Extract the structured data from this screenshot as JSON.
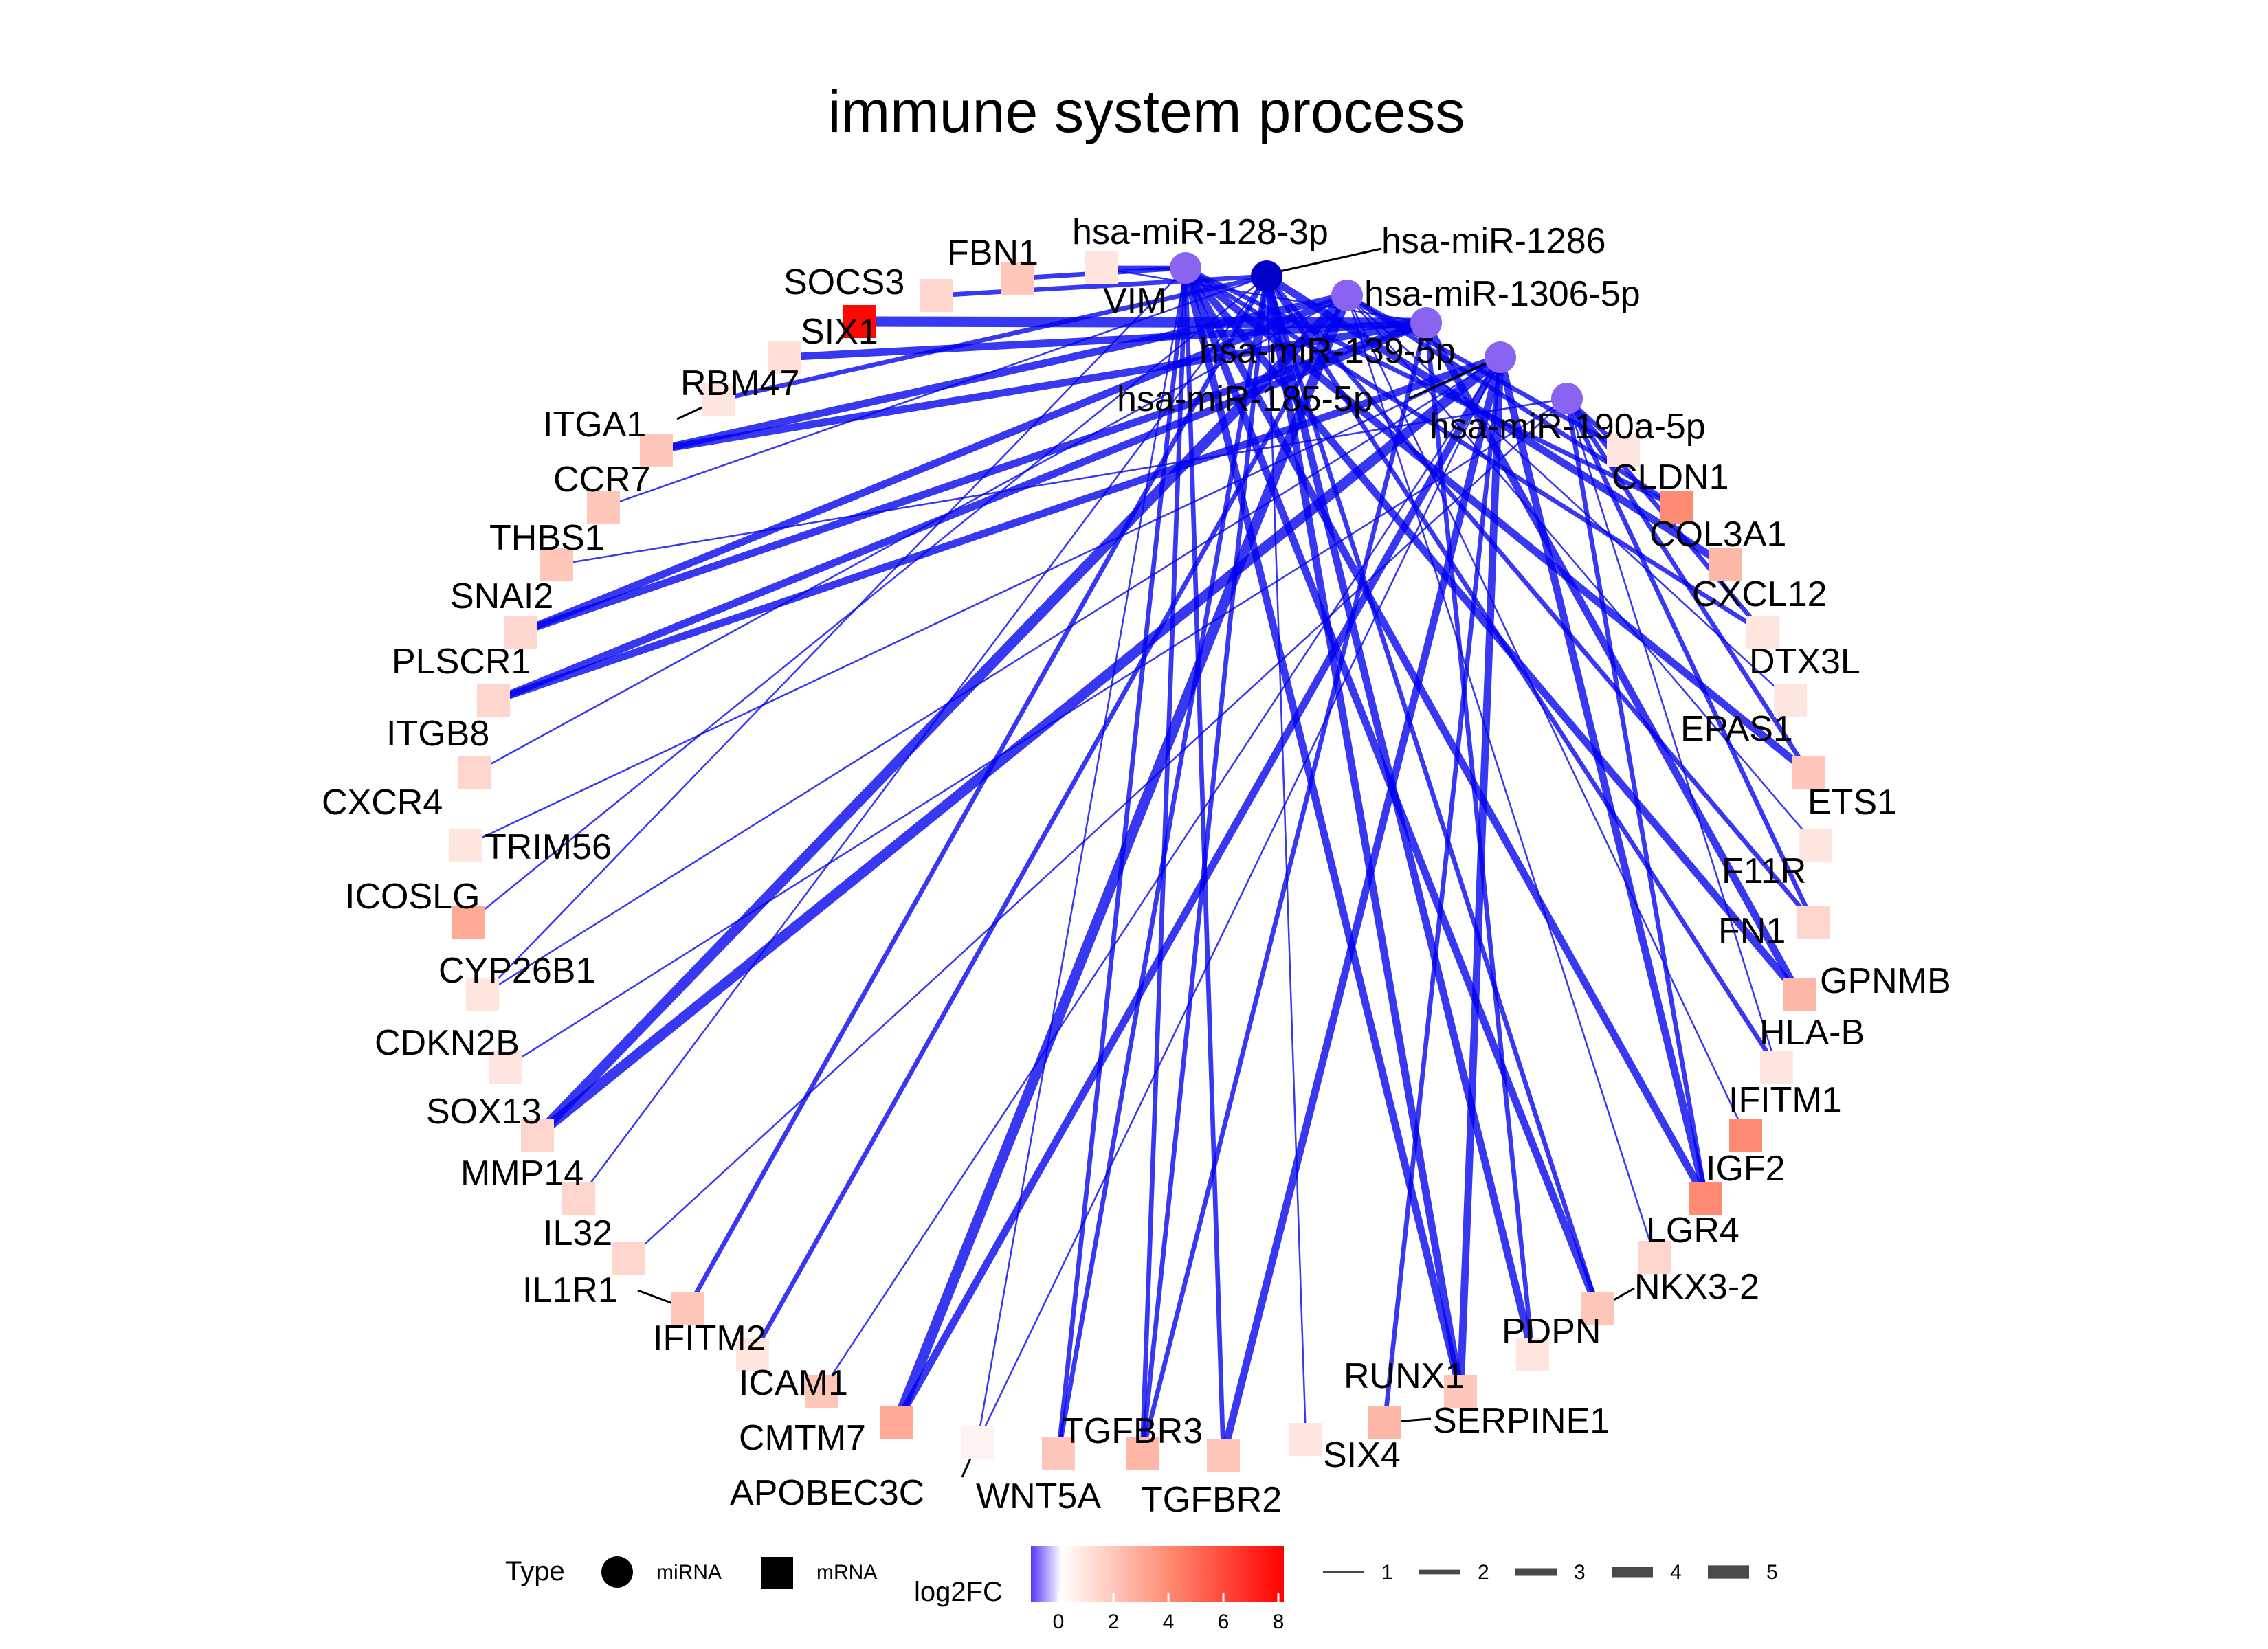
{
  "title": "immune system process",
  "colors": {
    "edge": "#0000ee",
    "mirna_default": "#8a63f0",
    "mirna_dark": "#0000c8",
    "gradient": [
      "#5a36ff",
      "#ffffff",
      "#ff0000"
    ]
  },
  "mirnas": [
    {
      "id": "m128",
      "label": "hsa-miR-128-3p",
      "dark": false
    },
    {
      "id": "m1286",
      "label": "hsa-miR-1286",
      "dark": true
    },
    {
      "id": "m1306",
      "label": "hsa-miR-1306-5p",
      "dark": false
    },
    {
      "id": "m139",
      "label": "hsa-miR-139-5p",
      "dark": false
    },
    {
      "id": "m185",
      "label": "hsa-miR-185-5p",
      "dark": false
    },
    {
      "id": "m190",
      "label": "hsa-miR-190a-5p",
      "dark": false
    }
  ],
  "mrnas": [
    {
      "label": "VIM",
      "log2fc": 1.0
    },
    {
      "label": "FBN1",
      "log2fc": 2.0
    },
    {
      "label": "SOCS3",
      "log2fc": 1.5
    },
    {
      "label": "SIX1",
      "log2fc": 8.0
    },
    {
      "label": "RBM47",
      "log2fc": 1.2
    },
    {
      "label": "ITGA1",
      "log2fc": 1.0
    },
    {
      "label": "CCR7",
      "log2fc": 2.0
    },
    {
      "label": "THBS1",
      "log2fc": 2.0
    },
    {
      "label": "SNAI2",
      "log2fc": 2.0
    },
    {
      "label": "PLSCR1",
      "log2fc": 1.5
    },
    {
      "label": "ITGB8",
      "log2fc": 1.5
    },
    {
      "label": "CXCR4",
      "log2fc": 1.5
    },
    {
      "label": "TRIM56",
      "log2fc": 1.0
    },
    {
      "label": "ICOSLG",
      "log2fc": 3.0
    },
    {
      "label": "CYP26B1",
      "log2fc": 1.0
    },
    {
      "label": "CDKN2B",
      "log2fc": 1.0
    },
    {
      "label": "SOX13",
      "log2fc": 1.5
    },
    {
      "label": "MMP14",
      "log2fc": 1.5
    },
    {
      "label": "IL32",
      "log2fc": 1.5
    },
    {
      "label": "IL1R1",
      "log2fc": 2.0
    },
    {
      "label": "IFITM2",
      "log2fc": 1.0
    },
    {
      "label": "ICAM1",
      "log2fc": 2.0
    },
    {
      "label": "CMTM7",
      "log2fc": 3.0
    },
    {
      "label": "APOBEC3C",
      "log2fc": 0.5
    },
    {
      "label": "WNT5A",
      "log2fc": 2.0
    },
    {
      "label": "TGFBR3",
      "log2fc": 2.5
    },
    {
      "label": "TGFBR2",
      "log2fc": 2.0
    },
    {
      "label": "SIX4",
      "log2fc": 1.0
    },
    {
      "label": "SERPINE1",
      "log2fc": 2.5
    },
    {
      "label": "RUNX1",
      "log2fc": 2.0
    },
    {
      "label": "PDPN",
      "log2fc": 1.0
    },
    {
      "label": "NKX3-2",
      "log2fc": 2.0
    },
    {
      "label": "LGR4",
      "log2fc": 1.5
    },
    {
      "label": "IGF2",
      "log2fc": 4.0
    },
    {
      "label": "IFITM1",
      "log2fc": 4.0
    },
    {
      "label": "HLA-B",
      "log2fc": 1.0
    },
    {
      "label": "GPNMB",
      "log2fc": 2.5
    },
    {
      "label": "FN1",
      "log2fc": 1.5
    },
    {
      "label": "F11R",
      "log2fc": 1.0
    },
    {
      "label": "ETS1",
      "log2fc": 2.0
    },
    {
      "label": "EPAS1",
      "log2fc": 1.0
    },
    {
      "label": "DTX3L",
      "log2fc": 1.0
    },
    {
      "label": "CXCL12",
      "log2fc": 2.5
    },
    {
      "label": "COL3A1",
      "log2fc": 4.0
    },
    {
      "label": "CLDN1",
      "log2fc": 1.0
    }
  ],
  "edges": [
    [
      "m128",
      "VIM",
      2
    ],
    [
      "m128",
      "FBN1",
      2
    ],
    [
      "m139",
      "SIX1",
      4
    ],
    [
      "m139",
      "RBM47",
      3
    ],
    [
      "m1286",
      "SOCS3",
      2
    ],
    [
      "m1286",
      "ITGA1",
      2
    ],
    [
      "m139",
      "CCR7",
      3
    ],
    [
      "m1306",
      "CCR7",
      3
    ],
    [
      "m1286",
      "THBS1",
      1
    ],
    [
      "m190",
      "SNAI2",
      1
    ],
    [
      "m139",
      "PLSCR1",
      3
    ],
    [
      "m1306",
      "PLSCR1",
      3
    ],
    [
      "m185",
      "ITGB8",
      3
    ],
    [
      "m139",
      "ITGB8",
      3
    ],
    [
      "m1306",
      "CXCR4",
      1
    ],
    [
      "m185",
      "TRIM56",
      1
    ],
    [
      "m128",
      "CYP26B1",
      1
    ],
    [
      "m185",
      "CYP26B1",
      1
    ],
    [
      "m190",
      "CDKN2B",
      1
    ],
    [
      "m1306",
      "SOX13",
      4
    ],
    [
      "m185",
      "SOX13",
      4
    ],
    [
      "m1286",
      "MMP14",
      1
    ],
    [
      "m190",
      "IL32",
      1
    ],
    [
      "m1286",
      "IL1R1",
      2
    ],
    [
      "m1306",
      "IFITM2",
      2
    ],
    [
      "m185",
      "ICAM1",
      1
    ],
    [
      "m1306",
      "CMTM7",
      4
    ],
    [
      "m185",
      "CMTM7",
      3
    ],
    [
      "m128",
      "APOBEC3C",
      1
    ],
    [
      "m185",
      "APOBEC3C",
      1
    ],
    [
      "m128",
      "WNT5A",
      2
    ],
    [
      "m1286",
      "WNT5A",
      2
    ],
    [
      "m128",
      "TGFBR3",
      2
    ],
    [
      "m1286",
      "TGFBR3",
      2
    ],
    [
      "m139",
      "TGFBR3",
      2
    ],
    [
      "m128",
      "TGFBR2",
      2
    ],
    [
      "m185",
      "TGFBR2",
      3
    ],
    [
      "m1286",
      "SIX4",
      1
    ],
    [
      "m185",
      "SERPINE1",
      2
    ],
    [
      "m128",
      "RUNX1",
      3
    ],
    [
      "m1286",
      "RUNX1",
      3
    ],
    [
      "m185",
      "RUNX1",
      3
    ],
    [
      "m1286",
      "PDPN",
      3
    ],
    [
      "m139",
      "PDPN",
      2
    ],
    [
      "m128",
      "NKX3-2",
      3
    ],
    [
      "m1286",
      "NKX3-2",
      2
    ],
    [
      "m1306",
      "LGR4",
      1
    ],
    [
      "m128",
      "IGF2",
      3
    ],
    [
      "m185",
      "IGF2",
      3
    ],
    [
      "m190",
      "IGF2",
      2
    ],
    [
      "m1306",
      "IFITM1",
      1
    ],
    [
      "m1286",
      "HLA-B",
      2
    ],
    [
      "m190",
      "HLA-B",
      1
    ],
    [
      "m128",
      "GPNMB",
      3
    ],
    [
      "m139",
      "GPNMB",
      3
    ],
    [
      "m1286",
      "FN1",
      2
    ],
    [
      "m190",
      "FN1",
      2
    ],
    [
      "m1306",
      "F11R",
      1
    ],
    [
      "m128",
      "ETS1",
      3
    ],
    [
      "m190",
      "ETS1",
      2
    ],
    [
      "m1306",
      "EPAS1",
      1
    ],
    [
      "m128",
      "DTX3L",
      2
    ],
    [
      "m190",
      "DTX3L",
      2
    ],
    [
      "m1286",
      "CXCL12",
      3
    ],
    [
      "m128",
      "COL3A1",
      2
    ],
    [
      "m1306",
      "COL3A1",
      2
    ],
    [
      "m1306",
      "CLDN1",
      2
    ],
    [
      "m190",
      "CLDN1",
      2
    ],
    [
      "m1286",
      "ICOSLG",
      1
    ],
    [
      "m139",
      "VIM",
      1
    ]
  ],
  "legend": {
    "type": {
      "title": "Type",
      "items": [
        "miRNA",
        "mRNA"
      ]
    },
    "color": {
      "title": "log2FC",
      "ticks": [
        "0",
        "2",
        "4",
        "6",
        "8"
      ],
      "min": -1.0,
      "max": 8.2
    },
    "width": {
      "items": [
        "1",
        "2",
        "3",
        "4",
        "5"
      ]
    }
  }
}
